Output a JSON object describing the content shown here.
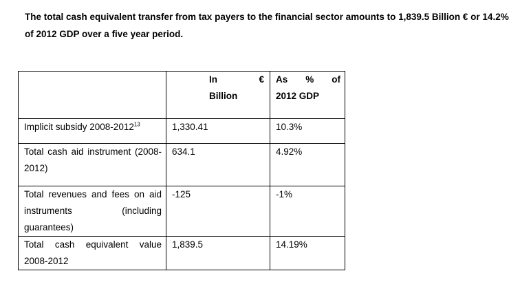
{
  "intro": "The total cash equivalent transfer from tax payers to the financial sector amounts to 1,839.5 Billion € or 14.2% of 2012 GDP over a five year period.",
  "table": {
    "header": {
      "col2_in": "In",
      "col2_euro": "€",
      "col2_billion": "Billion",
      "col3_as": "As",
      "col3_pct": "%",
      "col3_of": "of",
      "col3_gdp": "2012 GDP"
    },
    "rows": [
      {
        "label": "Implicit subsidy 2008-2012",
        "footnote": "13",
        "billion": "1,330.41",
        "gdp": "10.3%"
      },
      {
        "label": "Total cash aid instrument (2008-2012)",
        "billion": "634.1",
        "gdp": "4.92%"
      },
      {
        "label": "Total revenues and fees on aid instruments (including guarantees)",
        "billion": "-125",
        "gdp": "-1%"
      },
      {
        "label": "Total cash equivalent value 2008-2012",
        "billion": "1,839.5",
        "gdp": "14.19%"
      }
    ]
  }
}
